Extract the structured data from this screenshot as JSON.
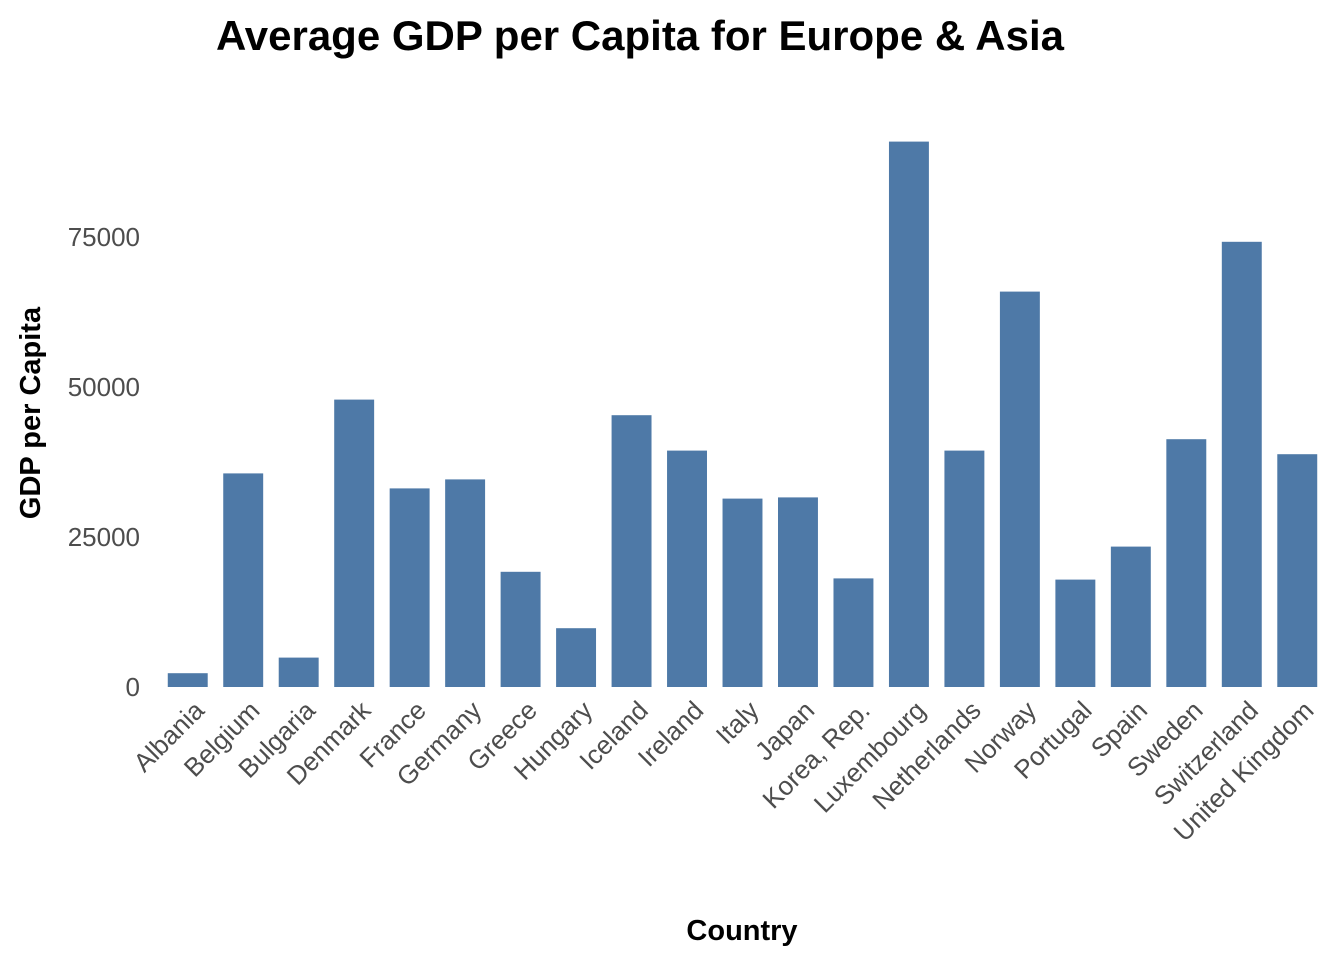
{
  "chart_data": {
    "type": "bar",
    "title": "Average GDP per Capita for Europe & Asia",
    "xlabel": "Country",
    "ylabel": "GDP per Capita",
    "categories": [
      "Albania",
      "Belgium",
      "Bulgaria",
      "Denmark",
      "France",
      "Germany",
      "Greece",
      "Hungary",
      "Iceland",
      "Ireland",
      "Italy",
      "Japan",
      "Korea, Rep.",
      "Luxembourg",
      "Netherlands",
      "Norway",
      "Portugal",
      "Spain",
      "Sweden",
      "Switzerland",
      "United Kingdom"
    ],
    "values": [
      2300,
      35600,
      4900,
      47900,
      33100,
      34600,
      19200,
      9800,
      45300,
      39400,
      31400,
      31600,
      18100,
      90900,
      39400,
      65900,
      17900,
      23400,
      41300,
      74200,
      38800
    ],
    "ylim": [
      0,
      91000
    ],
    "yticks": [
      0,
      25000,
      50000,
      75000
    ],
    "bar_color": "#4e79a7",
    "grid": false,
    "legend": "none"
  }
}
